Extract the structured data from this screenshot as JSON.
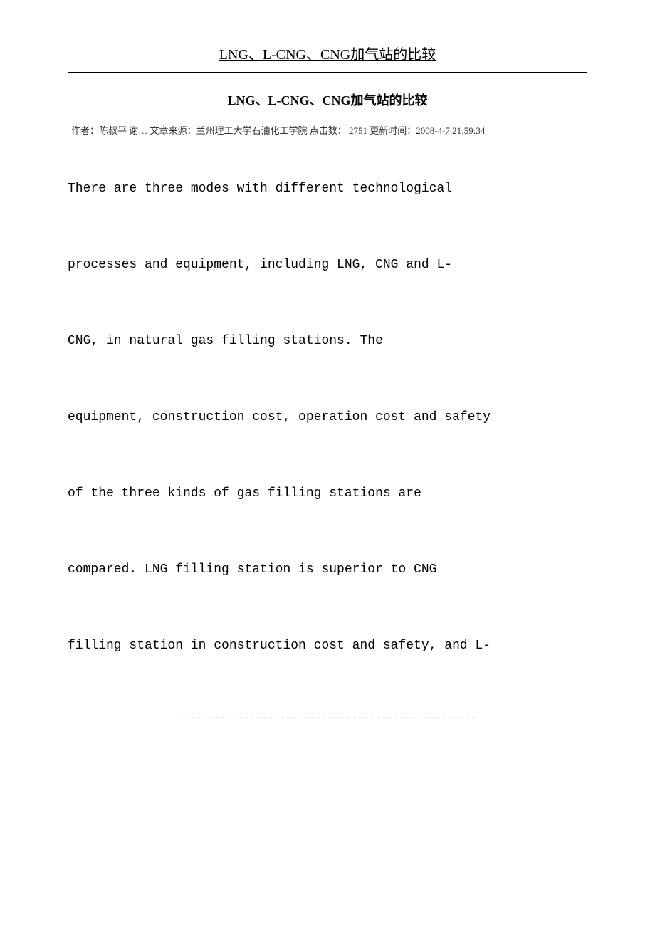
{
  "header": {
    "title": "LNG、L-CNG、CNG加气站的比较"
  },
  "article": {
    "title": "LNG、L-CNG、CNG加气站的比较",
    "meta": "作者：陈叔平 谢… 文章来源：兰州理工大学石油化工学院 点击数： 2751 更新时间：2008-4-7 21:59:34"
  },
  "body": {
    "paragraphs": [
      "There are three modes with different technological",
      "processes and equipment, including LNG, CNG and L-",
      "CNG, in natural gas filling stations. The",
      "equipment, construction cost, operation cost and safety",
      "of the three kinds of gas filling stations are",
      "compared. LNG filling station is superior to CNG",
      "filling station in construction cost and safety, and L-"
    ]
  },
  "footer": {
    "divider": "--------------------------------------------------"
  },
  "styles": {
    "background_color": "#ffffff",
    "text_color": "#000000",
    "meta_color": "#333333",
    "body_font": "Courier New",
    "title_font": "Times New Roman",
    "header_fontsize": 20,
    "article_title_fontsize": 18,
    "meta_fontsize": 13,
    "body_fontsize": 18,
    "body_line_spacing": 80
  }
}
